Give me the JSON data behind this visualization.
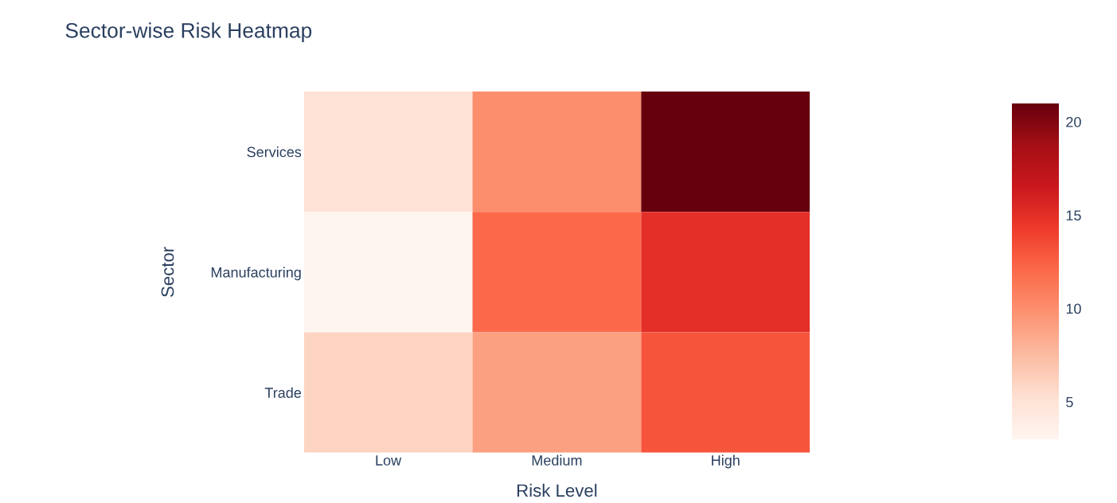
{
  "chart_data": {
    "type": "heatmap",
    "title": "Sector-wise Risk Heatmap",
    "xlabel": "Risk Level",
    "ylabel": "Sector",
    "categories": [
      "Low",
      "Medium",
      "High"
    ],
    "y_categories": [
      "Services",
      "Manufacturing",
      "Trade"
    ],
    "cells": [
      [
        5,
        10,
        21
      ],
      [
        3,
        12,
        15
      ],
      [
        6,
        9,
        13
      ]
    ],
    "clim": [
      3,
      21
    ],
    "cticks": [
      5,
      10,
      15,
      20
    ]
  }
}
